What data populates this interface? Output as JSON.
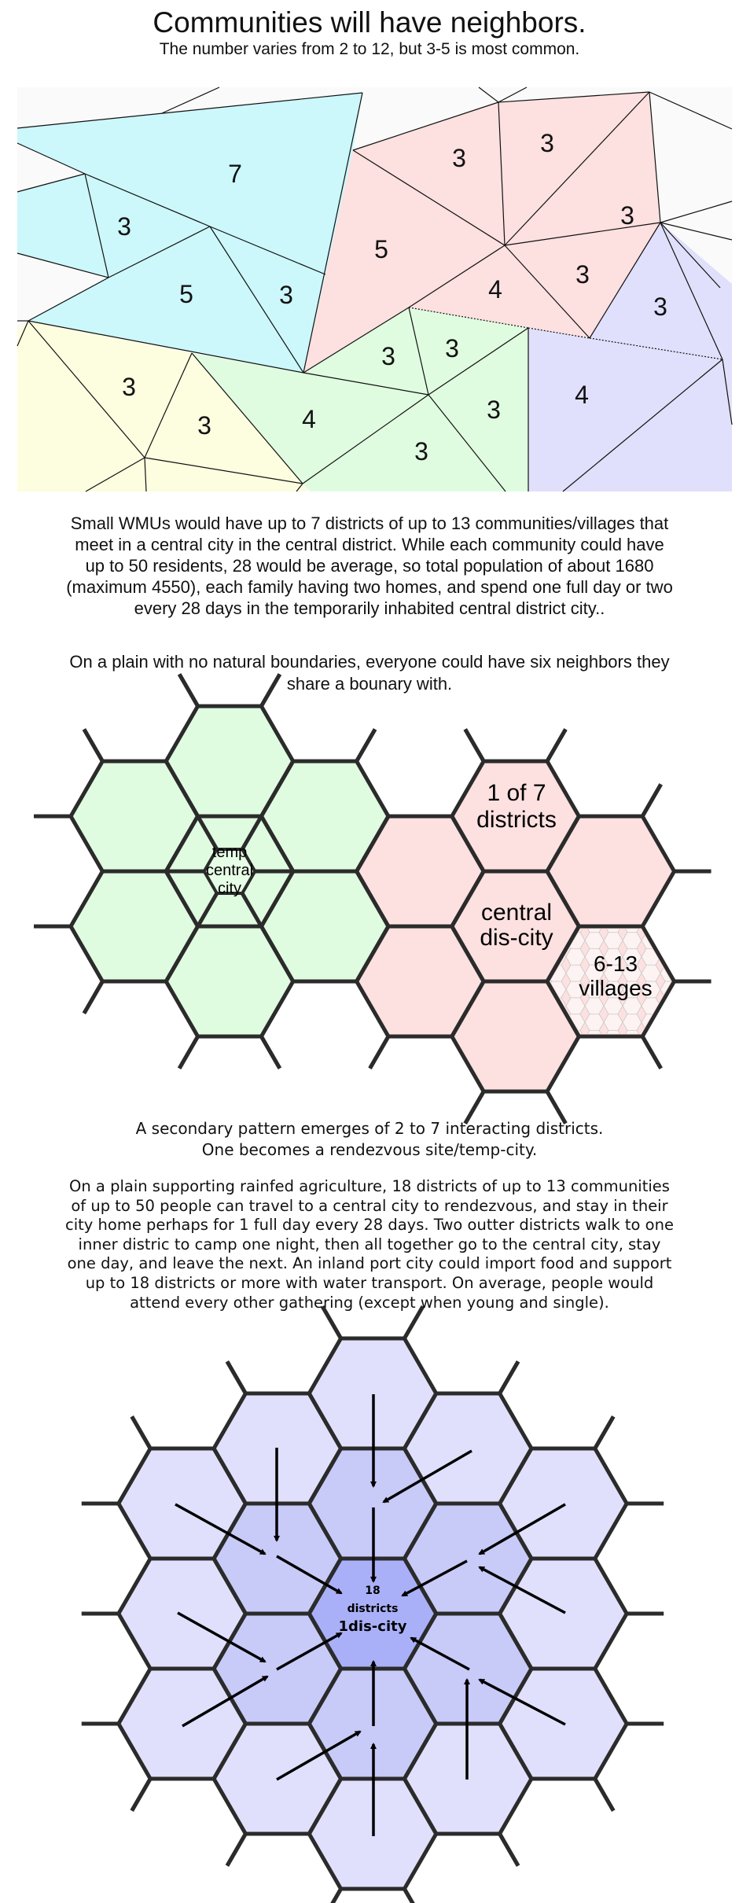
{
  "header": {
    "title": "Communities will have neighbors.",
    "subtitle": "The number varies from 2 to 12, but 3-5 is most common."
  },
  "triangle_map": {
    "region_colors": {
      "cyan": "#ccf7fb",
      "pink": "#fde0e0",
      "green": "#e0fce0",
      "yellow": "#fdfde0",
      "blue": "#e0e0fc"
    },
    "neighbor_counts": [
      "7",
      "3",
      "5",
      "3",
      "3",
      "3",
      "5",
      "3",
      "3",
      "4",
      "3",
      "3",
      "3",
      "3",
      "3",
      "4",
      "3",
      "4",
      "3"
    ]
  },
  "paragraph1": [
    "Small WMUs would have up to 7 districts of up to 13 communities/villages that",
    "meet in a central city in the central district. While each community could have",
    "up to 50 residents, 28 would be average, so total population of about 1680",
    "(maximum 4550), each family having two homes, and spend one full day or two",
    "every 28 days in the temporarily inhabited central district city.."
  ],
  "paragraph2": [
    "On a plain with no natural boundaries, everyone could have six neighbors they",
    "share a bounary with."
  ],
  "hex_diagram_1": {
    "colors": {
      "green": "#e0fce0",
      "pink": "#fde0e0",
      "stroke": "#2b2b2b"
    },
    "temp_city_label": [
      "temp",
      "central",
      "city"
    ],
    "district_label": [
      "1 of 7",
      "districts"
    ],
    "central_label": [
      "central",
      "dis-city"
    ],
    "villages_label": [
      "6-13",
      "villages"
    ]
  },
  "paragraph3": [
    "A secondary pattern emerges of 2 to 7 interacting districts.",
    "One becomes a rendezvous site/temp-city."
  ],
  "paragraph4": [
    "On a plain supporting rainfed agriculture, 18 districts of up to 13 communities",
    "of up to 50 people can travel to a central city to rendezvous, and stay in their",
    "city home perhaps for 1 full day every 28 days. Two outter districts walk to one",
    "inner distric to camp one night, then all together go to the central city, stay",
    "one day, and leave the next. An inland port city could import food and support",
    "up to 18 districts or more with water transport. On average, people would",
    "attend every other gathering (except when young and single)."
  ],
  "hex_diagram_2": {
    "colors": {
      "outer": "#e0e0fc",
      "inner": "#c8caf8",
      "center": "#aab0f8",
      "stroke": "#2b2b2b"
    },
    "center_label": [
      "18",
      "districts",
      "1dis-city"
    ],
    "arrow_count": 18
  }
}
